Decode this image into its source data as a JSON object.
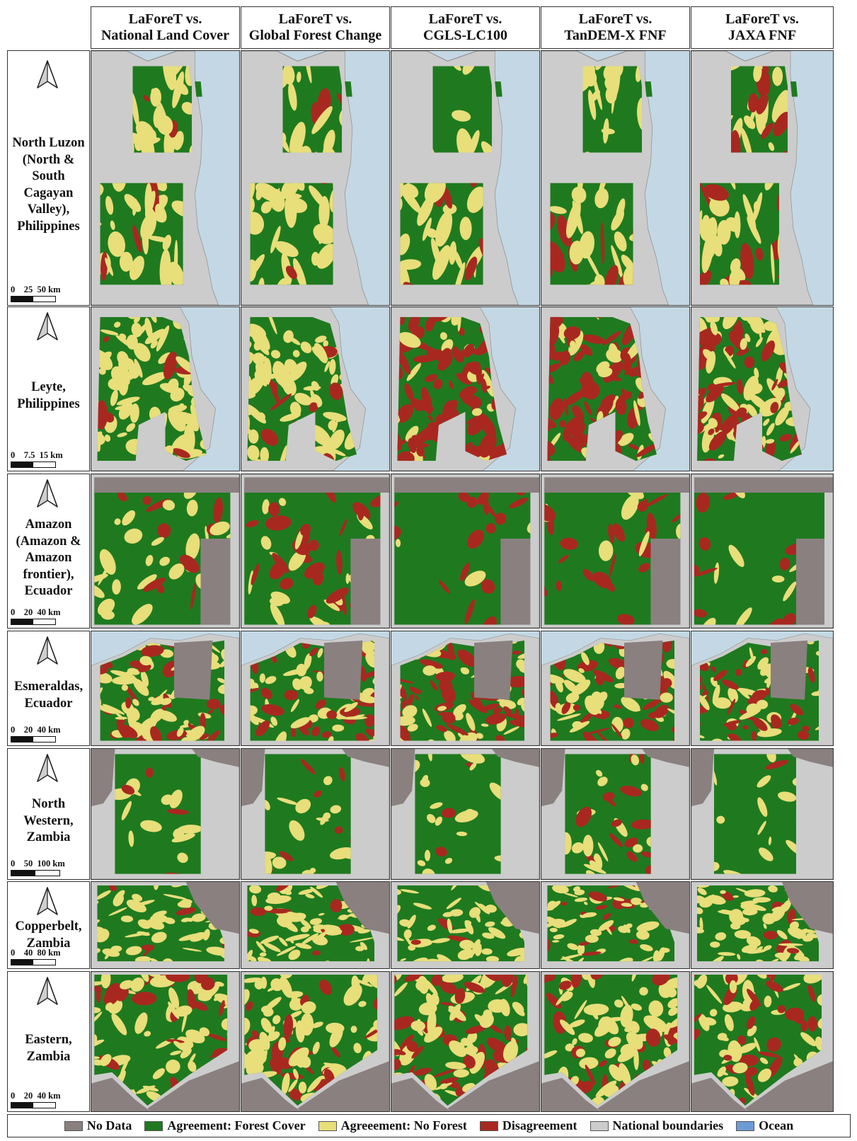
{
  "colors": {
    "no_data": "#8a8080",
    "forest": "#1f7a1f",
    "no_forest": "#e8de7a",
    "disagreement": "#a82820",
    "boundary": "#cccccc",
    "ocean": "#c3d8e4",
    "legend_ocean": "#6c9bd6"
  },
  "columns": [
    {
      "line1": "LaForeT vs.",
      "line2": "National Land Cover"
    },
    {
      "line1": "LaForeT vs.",
      "line2": "Global Forest Change"
    },
    {
      "line1": "LaForeT vs.",
      "line2": "CGLS-LC100"
    },
    {
      "line1": "LaForeT vs.",
      "line2": "TanDEM-X FNF"
    },
    {
      "line1": "LaForeT vs.",
      "line2": "JAXA FNF"
    }
  ],
  "rows": [
    {
      "lines": [
        "North Luzon",
        "(North &",
        "South",
        "Cagayan",
        "Valley),",
        "Philippines"
      ],
      "scale": [
        "0",
        "25",
        "50 km"
      ],
      "map": "luzon",
      "mix": [
        [
          0.38,
          0.52,
          0.1
        ],
        [
          0.42,
          0.5,
          0.08
        ],
        [
          0.52,
          0.4,
          0.08
        ],
        [
          0.42,
          0.48,
          0.1
        ],
        [
          0.3,
          0.45,
          0.25
        ]
      ]
    },
    {
      "lines": [
        "Leyte,",
        "Philippines"
      ],
      "scale": [
        "0",
        "7.5",
        "15 km"
      ],
      "map": "leyte",
      "mix": [
        [
          0.2,
          0.72,
          0.08
        ],
        [
          0.12,
          0.82,
          0.06
        ],
        [
          0.1,
          0.1,
          0.8
        ],
        [
          0.08,
          0.22,
          0.7
        ],
        [
          0.12,
          0.48,
          0.4
        ]
      ]
    },
    {
      "lines": [
        "Amazon",
        "(Amazon &",
        "Amazon",
        "frontier),",
        "Ecuador"
      ],
      "scale": [
        "0",
        "20",
        "40 km"
      ],
      "map": "amazon",
      "mix": [
        [
          0.78,
          0.15,
          0.07
        ],
        [
          0.68,
          0.12,
          0.2
        ],
        [
          0.84,
          0.03,
          0.13
        ],
        [
          0.82,
          0.04,
          0.14
        ],
        [
          0.86,
          0.05,
          0.09
        ]
      ]
    },
    {
      "lines": [
        "Esmeraldas,",
        "Ecuador"
      ],
      "scale": [
        "0",
        "20",
        "40 km"
      ],
      "map": "esmeraldas",
      "mix": [
        [
          0.3,
          0.48,
          0.22
        ],
        [
          0.34,
          0.46,
          0.2
        ],
        [
          0.4,
          0.3,
          0.3
        ],
        [
          0.42,
          0.28,
          0.3
        ],
        [
          0.42,
          0.3,
          0.28
        ]
      ]
    },
    {
      "lines": [
        "North",
        "Western,",
        "Zambia"
      ],
      "scale": [
        "0",
        "50",
        "100 km"
      ],
      "map": "nwzambia",
      "mix": [
        [
          0.8,
          0.15,
          0.05
        ],
        [
          0.8,
          0.15,
          0.05
        ],
        [
          0.86,
          0.12,
          0.02
        ],
        [
          0.78,
          0.14,
          0.08
        ],
        [
          0.84,
          0.12,
          0.04
        ]
      ]
    },
    {
      "lines": [
        "Copperbelt,",
        "Zambia"
      ],
      "scale": [
        "0",
        "40",
        "80 km"
      ],
      "map": "copperbelt",
      "mix": [
        [
          0.55,
          0.4,
          0.05
        ],
        [
          0.56,
          0.4,
          0.04
        ],
        [
          0.6,
          0.36,
          0.04
        ],
        [
          0.5,
          0.4,
          0.1
        ],
        [
          0.52,
          0.4,
          0.08
        ]
      ]
    },
    {
      "lines": [
        "Eastern,",
        "Zambia"
      ],
      "scale": [
        "0",
        "20",
        "40 km"
      ],
      "map": "eastern",
      "mix": [
        [
          0.35,
          0.48,
          0.17
        ],
        [
          0.32,
          0.48,
          0.2
        ],
        [
          0.25,
          0.4,
          0.35
        ],
        [
          0.42,
          0.4,
          0.18
        ],
        [
          0.4,
          0.4,
          0.2
        ]
      ]
    }
  ],
  "legend": [
    {
      "label": "No Data",
      "color": "#8a8080"
    },
    {
      "label": "Agreement: Forest Cover",
      "color": "#1f7a1f"
    },
    {
      "label": "Agreeement: No Forest",
      "color": "#e8de7a"
    },
    {
      "label": "Disagreement",
      "color": "#a82820"
    },
    {
      "label": "National boundaries",
      "color": "#cccccc"
    },
    {
      "label": "Ocean",
      "color": "#6c9bd6"
    }
  ]
}
